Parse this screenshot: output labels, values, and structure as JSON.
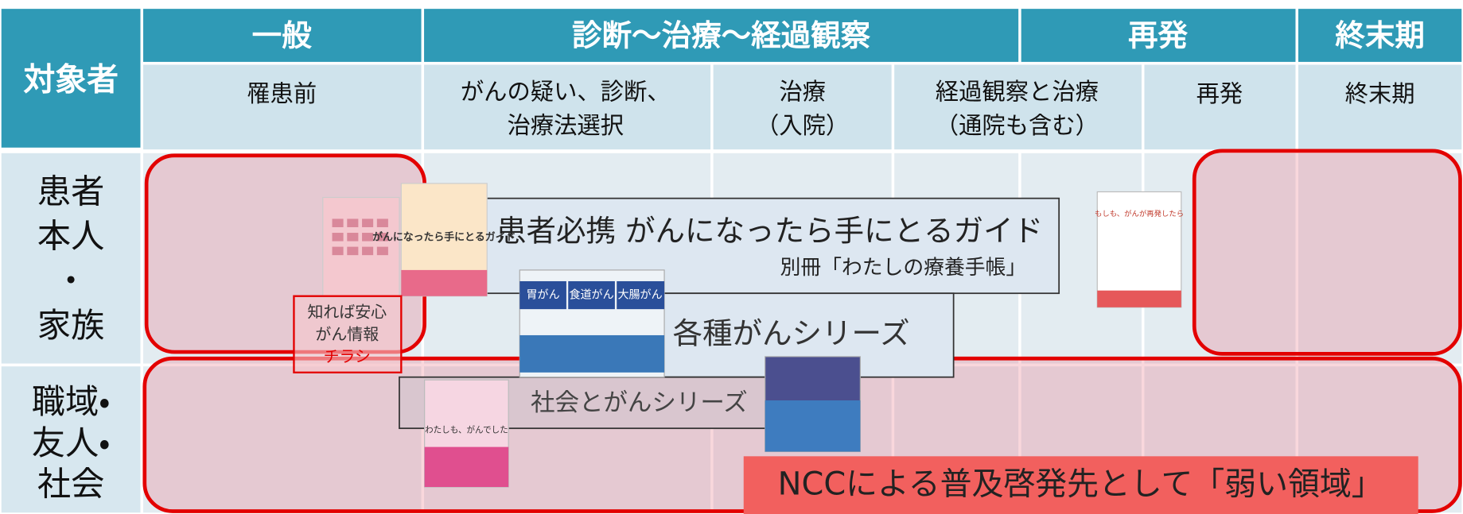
{
  "header": {
    "target": "対象者",
    "phases": [
      "一般",
      "診断～治療～経過観察",
      "再発",
      "終末期"
    ],
    "stages": [
      [
        "罹患前"
      ],
      [
        "がんの疑い、診断、",
        "治療法選択"
      ],
      [
        "治療",
        "（入院）"
      ],
      [
        "経過観察と治療",
        "（通院も含む）"
      ],
      [
        "再発"
      ],
      [
        "終末期"
      ]
    ]
  },
  "rows": [
    {
      "label": [
        "患者",
        "本人",
        "・",
        "家族"
      ]
    },
    {
      "label": [
        "職域・",
        "友人・",
        "社会"
      ]
    }
  ],
  "materials": {
    "guide_title": "患者必携 がんになったら手にとるガイド",
    "guide_sub": "別冊「わたしの療養手帳」",
    "series": "各種がんシリーズ",
    "society": "社会とがんシリーズ",
    "flyer": [
      "知れば安心",
      "がん情報",
      "チラシ"
    ],
    "books": {
      "guide": "がんになったら手にとるガイド",
      "series": [
        "胃がん",
        "食道がん",
        "大腸がん"
      ],
      "recurrence": "もしも、がんが再発したら",
      "society": "わたしも、がんでした"
    }
  },
  "note": "NCCによる普及啓発先として「弱い領域」"
}
